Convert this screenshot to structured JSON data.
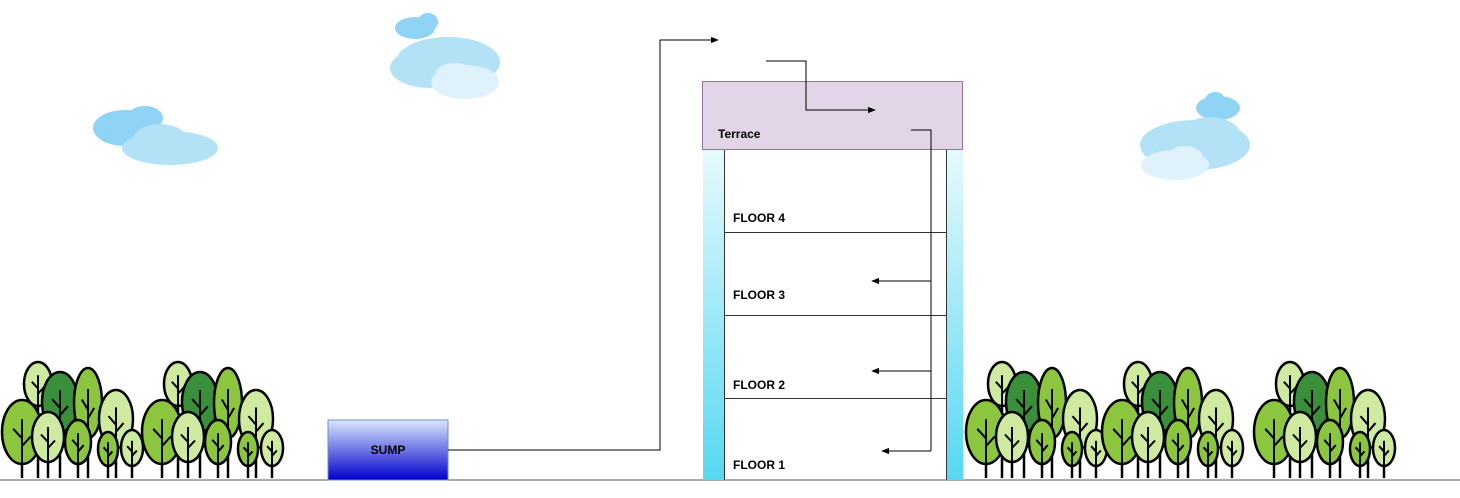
{
  "diagram": {
    "terrace": {
      "label": "Terrace",
      "fill": "#e1d5e7",
      "stroke": "#9673a6"
    },
    "sump": {
      "label": "SUMP",
      "gradient_top": "#dae8fc",
      "gradient_bottom": "#0000cc"
    },
    "floors": [
      {
        "label": "FLOOR 4"
      },
      {
        "label": "FLOOR 3"
      },
      {
        "label": "FLOOR 2"
      },
      {
        "label": "FLOOR 1"
      }
    ],
    "column_gradient": {
      "top": "#e6fafc",
      "bottom": "#56d7f2"
    },
    "tree_colors": {
      "light": "#cdeaa0",
      "mid": "#8cc63f",
      "dark": "#3a8f3a",
      "trunk": "#000000"
    },
    "cloud_colors": {
      "light": "#dff1fb",
      "mid": "#b3e2f7",
      "dark": "#8fd3f5"
    }
  }
}
